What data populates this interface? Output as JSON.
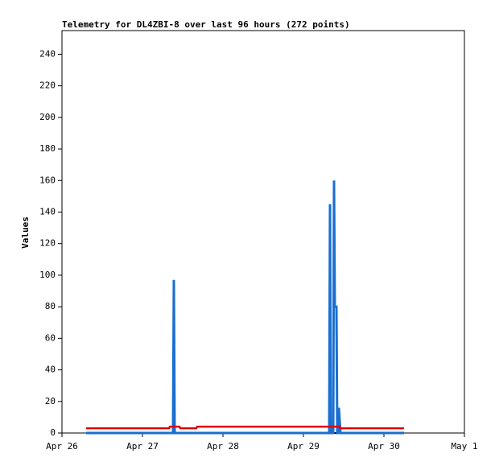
{
  "chart_data": {
    "type": "line",
    "title": "Telemetry for DL4ZBI-8 over last 96 hours (272 points)",
    "y_label": "Values",
    "xlim": [
      26,
      31
    ],
    "xticks": [
      {
        "value": 26,
        "label": "Apr 26"
      },
      {
        "value": 27,
        "label": "Apr 27"
      },
      {
        "value": 28,
        "label": "Apr 28"
      },
      {
        "value": 29,
        "label": "Apr 29"
      },
      {
        "value": 30,
        "label": "Apr 30"
      },
      {
        "value": 31,
        "label": "May 1"
      }
    ],
    "ylim": [
      0,
      255
    ],
    "yticks": [
      0,
      20,
      40,
      60,
      80,
      100,
      120,
      140,
      160,
      180,
      200,
      220,
      240
    ],
    "series": [
      {
        "color": "#000000",
        "width": 2,
        "x": [
          26.3,
          30.25
        ],
        "values": [
          0,
          0
        ]
      },
      {
        "color": "#1a6fd0",
        "width": 3,
        "x": [
          26.3,
          27.38,
          27.39,
          27.4,
          29.32,
          29.33,
          29.34,
          29.37,
          29.38,
          29.39,
          29.41,
          29.42,
          29.43,
          29.44,
          29.45,
          29.46,
          30.25
        ],
        "values": [
          0,
          0,
          97,
          0,
          0,
          145,
          0,
          0,
          160,
          80,
          80,
          0,
          0,
          16,
          8,
          0,
          0
        ]
      },
      {
        "color": "#e00000",
        "width": 2.5,
        "x": [
          26.3,
          27.33,
          27.34,
          27.46,
          27.47,
          27.67,
          27.68,
          29.45,
          29.46,
          30.25
        ],
        "values": [
          3,
          3,
          4,
          4,
          3,
          3,
          4,
          4,
          3,
          3
        ]
      }
    ]
  }
}
